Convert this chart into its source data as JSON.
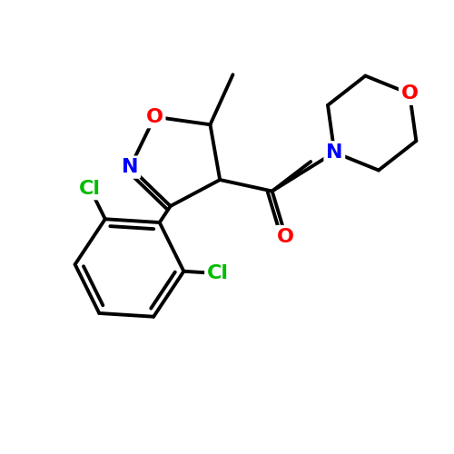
{
  "background_color": "#ffffff",
  "bond_color": "#000000",
  "bond_width": 2.8,
  "atom_colors": {
    "O": "#ff0000",
    "N": "#0000ff",
    "Cl": "#00bb00",
    "C": "#000000"
  },
  "font_size_atoms": 16,
  "figsize": [
    5.0,
    5.0
  ],
  "dpi": 100
}
